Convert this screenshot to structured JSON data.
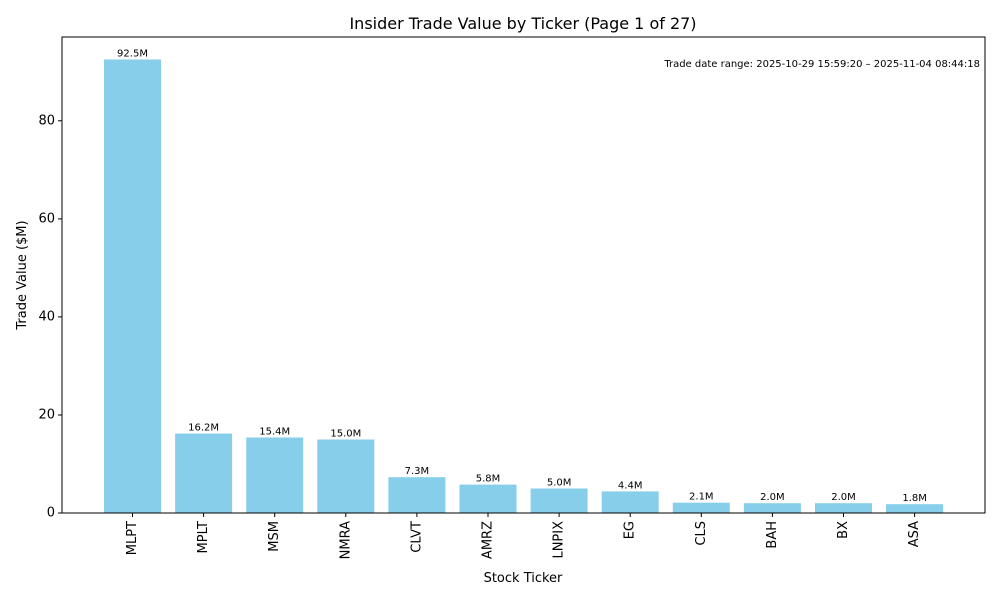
{
  "chart_data": {
    "type": "bar",
    "title": "Insider Trade Value by Ticker (Page 1 of 27)",
    "xlabel": "Stock Ticker",
    "ylabel": "Trade Value ($M)",
    "categories": [
      "MLPT",
      "MPLT",
      "MSM",
      "NMRA",
      "CLVT",
      "AMRZ",
      "LNPIX",
      "EG",
      "CLS",
      "BAH",
      "BX",
      "ASA"
    ],
    "values": [
      92.5,
      16.2,
      15.4,
      15.0,
      7.3,
      5.8,
      5.0,
      4.4,
      2.1,
      2.0,
      2.0,
      1.8
    ],
    "data_labels": [
      "92.5M",
      "16.2M",
      "15.4M",
      "15.0M",
      "7.3M",
      "5.8M",
      "5.0M",
      "4.4M",
      "2.1M",
      "2.0M",
      "2.0M",
      "1.8M"
    ],
    "ylim": [
      0,
      97.1
    ],
    "yticks": [
      0,
      20,
      40,
      60,
      80
    ],
    "ytick_labels": [
      "0",
      "20",
      "40",
      "60",
      "80"
    ],
    "bar_color": "#87ceeb",
    "grid": false,
    "annotation": "Trade date range: 2025-10-29 15:59:20 – 2025-11-04 08:44:18",
    "annotation_position": "top-right"
  }
}
